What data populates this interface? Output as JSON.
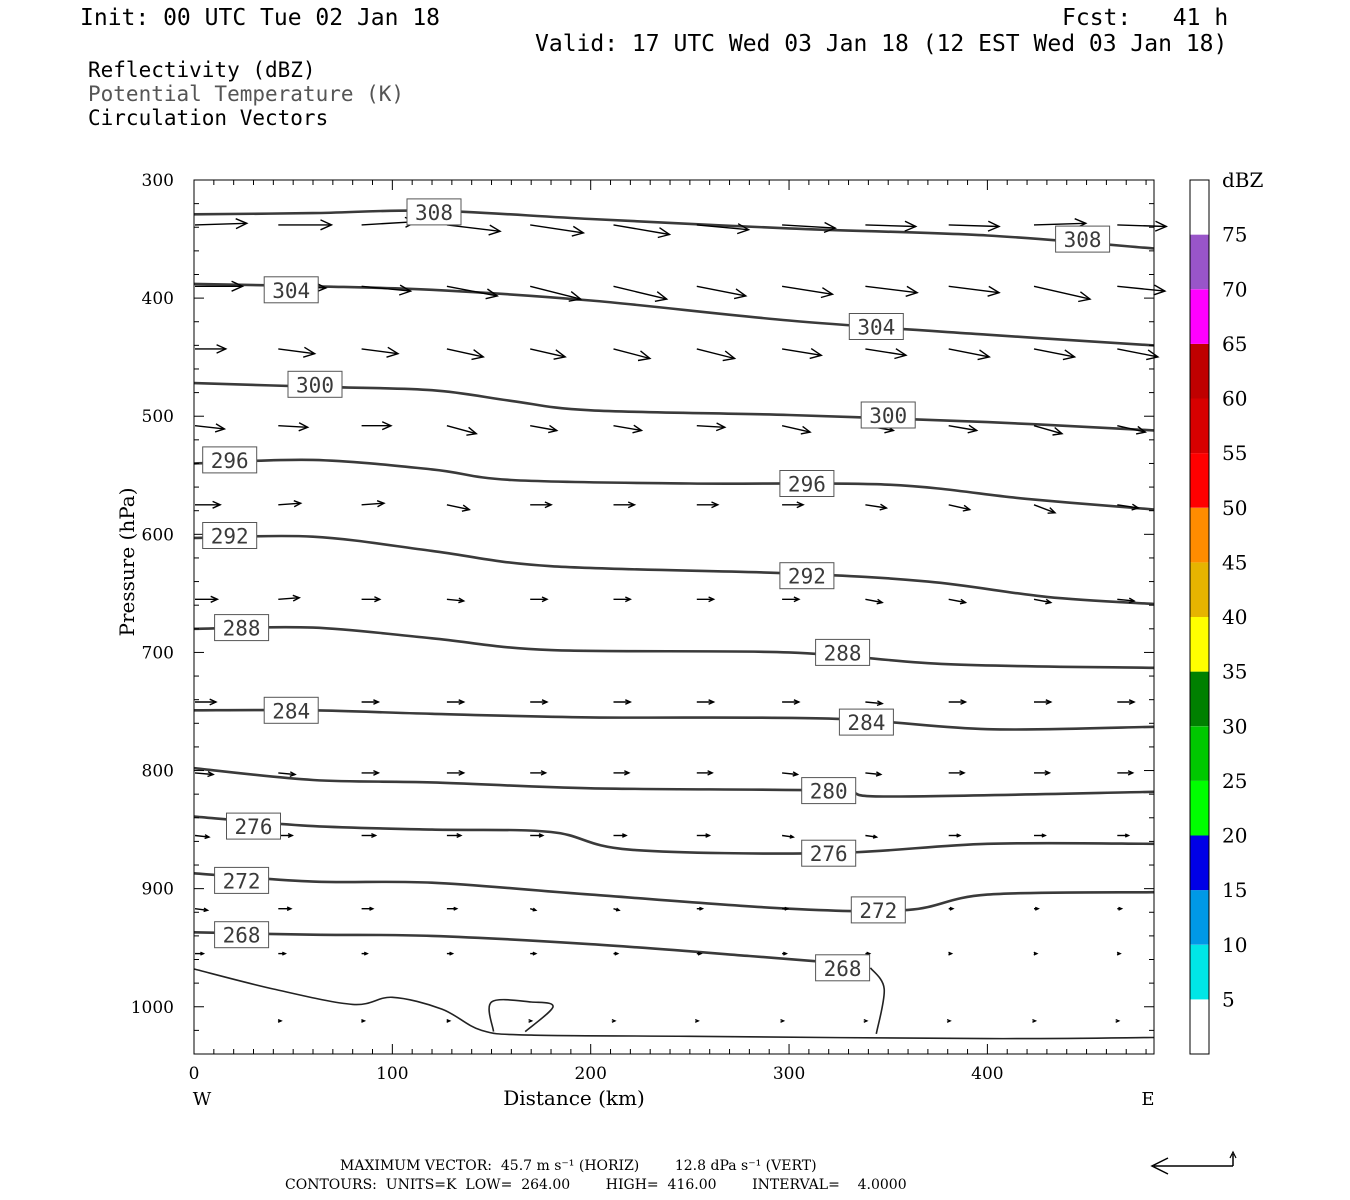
{
  "header": {
    "init": "Init: 00 UTC Tue 02 Jan 18",
    "fcst": "Fcst:   41 h",
    "valid": "Valid: 17 UTC Wed 03 Jan 18 (12 EST Wed 03 Jan 18)"
  },
  "legend_lines": {
    "reflectivity": "Reflectivity (dBZ)",
    "theta": "Potential Temperature (K)",
    "vectors": "Circulation Vectors"
  },
  "footer": {
    "max_vector": "MAXIMUM VECTOR:  45.7 m s⁻¹ (HORIZ)        12.8 dPa s⁻¹ (VERT)",
    "contours": "CONTOURS:  UNITS=K  LOW=  264.00        HIGH=  416.00        INTERVAL=    4.0000"
  },
  "chart_data": {
    "type": "line",
    "xlabel": "Distance (km)",
    "ylabel": "Pressure (hPa)",
    "xlim": [
      0,
      484
    ],
    "ylim": [
      1040,
      300
    ],
    "x_ticks": [
      0,
      100,
      200,
      300,
      400
    ],
    "y_ticks": [
      300,
      400,
      500,
      600,
      700,
      800,
      900,
      1000
    ],
    "x_end_labels": {
      "left": "W",
      "right": "E"
    },
    "colorbar": {
      "label": "dBZ",
      "ticks": [
        5,
        10,
        15,
        20,
        25,
        30,
        35,
        40,
        45,
        50,
        55,
        60,
        65,
        70,
        75
      ],
      "colors": [
        "#00e6e6",
        "#0099e6",
        "#0000e6",
        "#00ff00",
        "#00c800",
        "#008000",
        "#ffff00",
        "#e6b400",
        "#ff8c00",
        "#ff0000",
        "#d70000",
        "#bf0000",
        "#ff00ff",
        "#9955c9"
      ]
    },
    "isentropes": [
      {
        "level": 308,
        "labels": [
          [
            121,
            327
          ],
          [
            448,
            350
          ]
        ],
        "points": [
          [
            0,
            329
          ],
          [
            60,
            328
          ],
          [
            120,
            326
          ],
          [
            200,
            333
          ],
          [
            300,
            341
          ],
          [
            400,
            347
          ],
          [
            484,
            358
          ]
        ]
      },
      {
        "level": 304,
        "labels": [
          [
            49,
            393
          ],
          [
            344,
            424
          ]
        ],
        "points": [
          [
            0,
            388
          ],
          [
            60,
            390
          ],
          [
            120,
            393
          ],
          [
            200,
            402
          ],
          [
            300,
            419
          ],
          [
            400,
            431
          ],
          [
            484,
            440
          ]
        ]
      },
      {
        "level": 300,
        "labels": [
          [
            61,
            473
          ],
          [
            350,
            499
          ]
        ],
        "points": [
          [
            0,
            472
          ],
          [
            60,
            475
          ],
          [
            120,
            478
          ],
          [
            160,
            487
          ],
          [
            200,
            495
          ],
          [
            300,
            499
          ],
          [
            400,
            505
          ],
          [
            484,
            512
          ]
        ]
      },
      {
        "level": 296,
        "labels": [
          [
            18,
            537
          ],
          [
            309,
            557
          ]
        ],
        "points": [
          [
            0,
            540
          ],
          [
            60,
            537
          ],
          [
            120,
            545
          ],
          [
            160,
            554
          ],
          [
            250,
            557
          ],
          [
            350,
            558
          ],
          [
            420,
            570
          ],
          [
            484,
            579
          ]
        ]
      },
      {
        "level": 292,
        "labels": [
          [
            18,
            601
          ],
          [
            309,
            635
          ]
        ],
        "points": [
          [
            0,
            603
          ],
          [
            60,
            602
          ],
          [
            120,
            614
          ],
          [
            180,
            627
          ],
          [
            300,
            633
          ],
          [
            370,
            640
          ],
          [
            430,
            653
          ],
          [
            484,
            659
          ]
        ]
      },
      {
        "level": 288,
        "labels": [
          [
            24,
            679
          ],
          [
            327,
            700
          ]
        ],
        "points": [
          [
            0,
            680
          ],
          [
            60,
            679
          ],
          [
            120,
            688
          ],
          [
            180,
            698
          ],
          [
            300,
            700
          ],
          [
            380,
            710
          ],
          [
            484,
            713
          ]
        ]
      },
      {
        "level": 284,
        "labels": [
          [
            49,
            749
          ],
          [
            339,
            759
          ]
        ],
        "points": [
          [
            0,
            749
          ],
          [
            60,
            749
          ],
          [
            120,
            752
          ],
          [
            200,
            755
          ],
          [
            320,
            756
          ],
          [
            400,
            765
          ],
          [
            484,
            763
          ]
        ]
      },
      {
        "level": 280,
        "labels": [
          [
            320,
            817
          ]
        ],
        "points": [
          [
            0,
            798
          ],
          [
            60,
            808
          ],
          [
            120,
            810
          ],
          [
            200,
            815
          ],
          [
            320,
            817
          ],
          [
            350,
            822
          ],
          [
            484,
            818
          ]
        ]
      },
      {
        "level": 276,
        "labels": [
          [
            30,
            847
          ],
          [
            320,
            870
          ]
        ],
        "points": [
          [
            0,
            839
          ],
          [
            60,
            847
          ],
          [
            120,
            850
          ],
          [
            180,
            852
          ],
          [
            220,
            867
          ],
          [
            320,
            870
          ],
          [
            400,
            862
          ],
          [
            484,
            862
          ]
        ]
      },
      {
        "level": 272,
        "labels": [
          [
            24,
            893
          ],
          [
            345,
            918
          ]
        ],
        "points": [
          [
            0,
            887
          ],
          [
            60,
            894
          ],
          [
            120,
            895
          ],
          [
            200,
            905
          ],
          [
            300,
            917
          ],
          [
            360,
            918
          ],
          [
            400,
            905
          ],
          [
            484,
            903
          ]
        ]
      },
      {
        "level": 268,
        "labels": [
          [
            24,
            939
          ],
          [
            327,
            967
          ]
        ],
        "points": [
          [
            0,
            937
          ],
          [
            60,
            939
          ],
          [
            120,
            940
          ],
          [
            200,
            947
          ],
          [
            280,
            957
          ],
          [
            340,
            965
          ]
        ]
      }
    ],
    "low_contours": [
      {
        "points": [
          [
            0,
            968
          ],
          [
            40,
            985
          ],
          [
            80,
            998
          ],
          [
            100,
            992
          ],
          [
            125,
            1002
          ],
          [
            145,
            1020
          ],
          [
            170,
            1024
          ],
          [
            250,
            1025
          ],
          [
            400,
            1027
          ],
          [
            484,
            1026
          ]
        ]
      },
      {
        "points": [
          [
            151,
            1021
          ],
          [
            150,
            996
          ],
          [
            170,
            996
          ],
          [
            181,
            1000
          ],
          [
            167,
            1021
          ]
        ]
      },
      {
        "points": [
          [
            341,
            967
          ],
          [
            348,
            985
          ],
          [
            344,
            1023
          ]
        ]
      }
    ],
    "vector_max": {
      "horiz": 45.7,
      "vert": 12.8
    },
    "vectors": [
      {
        "p": 338,
        "x": [
          0,
          42,
          84,
          127,
          169,
          211,
          253,
          296,
          338,
          380,
          423,
          465
        ],
        "u": [
          37,
          38,
          39,
          38,
          38,
          40,
          37,
          38,
          36,
          36,
          37,
          35
        ],
        "w": [
          -1,
          0,
          -2,
          4,
          5,
          6,
          3,
          2,
          1,
          1,
          -1,
          1
        ]
      },
      {
        "p": 390,
        "x": [
          0,
          42,
          84,
          127,
          169,
          211,
          253,
          296,
          338,
          380,
          423,
          465
        ],
        "u": [
          34,
          34,
          35,
          36,
          36,
          38,
          35,
          36,
          37,
          36,
          40,
          34
        ],
        "w": [
          0,
          1,
          3,
          6,
          8,
          8,
          6,
          5,
          4,
          4,
          8,
          3
        ]
      },
      {
        "p": 443,
        "x": [
          0,
          42,
          84,
          127,
          169,
          211,
          253,
          296,
          338,
          380,
          423,
          465
        ],
        "u": [
          22,
          26,
          26,
          26,
          25,
          26,
          27,
          28,
          29,
          29,
          29,
          29
        ],
        "w": [
          0,
          3,
          3,
          5,
          5,
          6,
          6,
          4,
          4,
          5,
          5,
          5
        ]
      },
      {
        "p": 508,
        "x": [
          0,
          42,
          84,
          127,
          169,
          211,
          253,
          296,
          338,
          380,
          423,
          465
        ],
        "u": [
          21,
          21,
          21,
          21,
          19,
          20,
          20,
          20,
          20,
          20,
          20,
          20
        ],
        "w": [
          2,
          1,
          0,
          5,
          3,
          3,
          1,
          4,
          3,
          3,
          5,
          4
        ]
      },
      {
        "p": 575,
        "x": [
          0,
          42,
          84,
          127,
          169,
          211,
          253,
          296,
          338,
          380,
          423,
          465
        ],
        "u": [
          18,
          16,
          16,
          16,
          15,
          15,
          15,
          15,
          15,
          15,
          15,
          15
        ],
        "w": [
          0,
          -1,
          -1,
          3,
          0,
          0,
          0,
          0,
          2,
          3,
          5,
          2
        ]
      },
      {
        "p": 655,
        "x": [
          0,
          42,
          84,
          127,
          169,
          211,
          253,
          296,
          338,
          380,
          423,
          465
        ],
        "u": [
          16,
          15,
          13,
          12,
          12,
          12,
          12,
          12,
          12,
          12,
          12,
          12
        ],
        "w": [
          0,
          -1,
          0,
          1,
          0,
          0,
          0,
          0,
          2,
          2,
          2,
          1
        ]
      },
      {
        "p": 742,
        "x": [
          0,
          42,
          84,
          127,
          169,
          211,
          253,
          296,
          338,
          380,
          423,
          465
        ],
        "u": [
          15,
          14,
          12,
          12,
          12,
          12,
          12,
          12,
          12,
          12,
          12,
          12
        ],
        "w": [
          0,
          1,
          0,
          0,
          0,
          0,
          0,
          0,
          1,
          0,
          0,
          0
        ]
      },
      {
        "p": 802,
        "x": [
          0,
          42,
          84,
          127,
          169,
          211,
          253,
          296,
          338,
          380,
          423,
          465
        ],
        "u": [
          13,
          12,
          12,
          12,
          11,
          11,
          11,
          11,
          11,
          11,
          11,
          11
        ],
        "w": [
          1,
          1,
          0,
          0,
          0,
          0,
          0,
          1,
          1,
          0,
          0,
          0
        ]
      },
      {
        "p": 855,
        "x": [
          0,
          42,
          84,
          127,
          169,
          211,
          253,
          296,
          338,
          380,
          423,
          465
        ],
        "u": [
          10,
          10,
          10,
          10,
          9,
          9,
          9,
          8,
          8,
          8,
          8,
          8
        ],
        "w": [
          1,
          0,
          0,
          0,
          0,
          0,
          0,
          1,
          1,
          0,
          0,
          0
        ]
      },
      {
        "p": 917,
        "x": [
          0,
          42,
          84,
          127,
          169,
          211,
          253,
          296,
          338,
          380,
          423,
          465
        ],
        "u": [
          9,
          9,
          8,
          7,
          4,
          4,
          4,
          4,
          4,
          3,
          3,
          3
        ],
        "w": [
          1,
          0,
          0,
          0,
          1,
          1,
          0,
          0,
          0,
          0,
          0,
          0
        ]
      },
      {
        "p": 955,
        "x": [
          0,
          42,
          84,
          127,
          169,
          211,
          253,
          296,
          338,
          380,
          423,
          465
        ],
        "u": [
          6,
          5,
          4,
          4,
          4,
          3,
          3,
          3,
          3,
          2,
          2,
          2
        ],
        "w": [
          0,
          0,
          0,
          0,
          0,
          0,
          0,
          0,
          0,
          0,
          0,
          0
        ]
      },
      {
        "p": 1012,
        "x": [
          42,
          84,
          127,
          169,
          211,
          253,
          296,
          338,
          380,
          423,
          465
        ],
        "u": [
          2,
          2,
          2,
          1,
          1,
          1,
          1,
          1,
          1,
          1,
          1
        ],
        "w": [
          0,
          0,
          0,
          0,
          0,
          0,
          0,
          0,
          0,
          0,
          0
        ]
      }
    ]
  }
}
